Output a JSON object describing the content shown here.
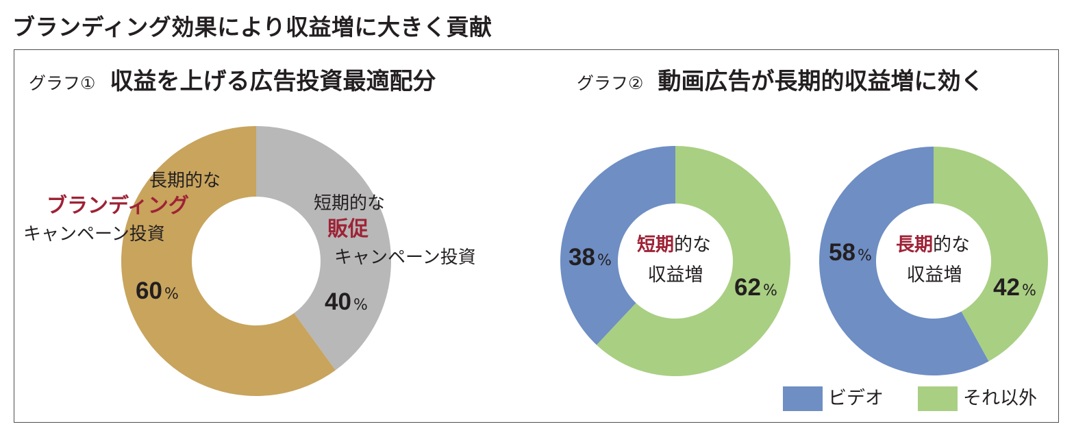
{
  "main_title": "ブランディング効果により収益増に大きく貢献",
  "colors": {
    "branding": "#c8a45d",
    "promo": "#b8b8b8",
    "video": "#6e8ec4",
    "other": "#a9cf83",
    "accent_red": "#9e2236",
    "text": "#231f20"
  },
  "chart_data": [
    {
      "type": "pie",
      "donut": true,
      "title_tag": "グラフ①",
      "title": "収益を上げる広告投資最適配分",
      "slices": [
        {
          "key": "branding",
          "value": 60,
          "value_label": "60",
          "label_lines": [
            "長期的な",
            "ブランディング",
            "キャンペーン投資"
          ]
        },
        {
          "key": "promo",
          "value": 40,
          "value_label": "40",
          "label_lines": [
            "短期的な",
            "販促",
            "キャンペーン投資"
          ]
        }
      ],
      "percent_sign": "%"
    },
    {
      "type": "pie",
      "donut": true,
      "title_tag": "グラフ②",
      "title": "動画広告が長期的収益増に効く",
      "subcharts": [
        {
          "center_label": {
            "accent": "短期",
            "rest": "的な",
            "line2": "収益増"
          },
          "slices": [
            {
              "key": "video",
              "value": 38,
              "value_label": "38"
            },
            {
              "key": "other",
              "value": 62,
              "value_label": "62"
            }
          ]
        },
        {
          "center_label": {
            "accent": "長期",
            "rest": "的な",
            "line2": "収益増"
          },
          "slices": [
            {
              "key": "video",
              "value": 58,
              "value_label": "58"
            },
            {
              "key": "other",
              "value": 42,
              "value_label": "42"
            }
          ]
        }
      ],
      "percent_sign": "%",
      "legend": [
        {
          "key": "video",
          "label": "ビデオ"
        },
        {
          "key": "other",
          "label": "それ以外"
        }
      ]
    }
  ]
}
